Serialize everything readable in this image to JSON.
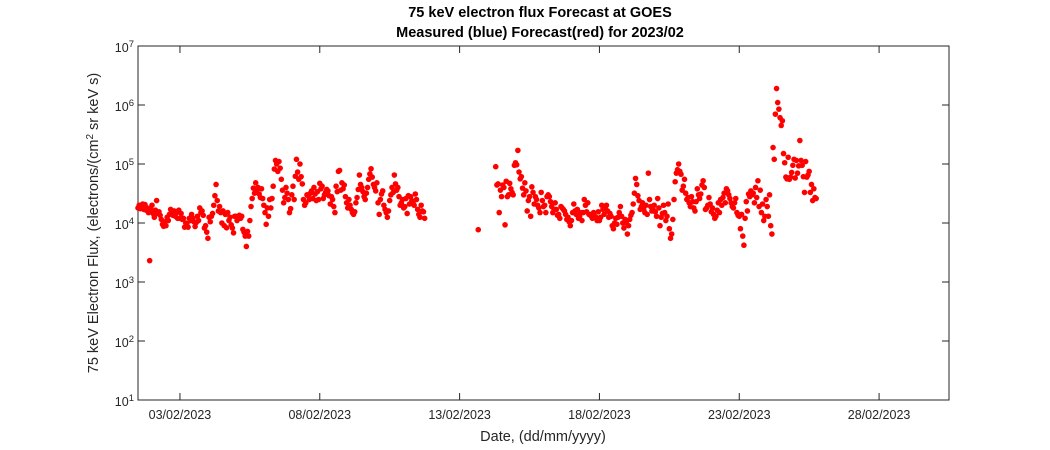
{
  "chart_data": {
    "type": "scatter",
    "title": "75 keV electron flux Forecast at GOES",
    "subtitle": "Measured (blue) Forecast(red) for 2023/02",
    "xlabel": "Date, (dd/mm/yyyy)",
    "ylabel": {
      "prefix": "75 keV Electron Flux, (electrons/(cm",
      "sup": "2",
      "suffix": " sr keV s)"
    },
    "y_scale": "log",
    "ylim": [
      10,
      10000000
    ],
    "y_ticks": [
      {
        "base": "10",
        "exp": "1"
      },
      {
        "base": "10",
        "exp": "2"
      },
      {
        "base": "10",
        "exp": "3"
      },
      {
        "base": "10",
        "exp": "4"
      },
      {
        "base": "10",
        "exp": "5"
      },
      {
        "base": "10",
        "exp": "6"
      },
      {
        "base": "10",
        "exp": "7"
      }
    ],
    "xlim": [
      "2023-02-01T12:00",
      "2023-03-02T12:00"
    ],
    "x_ticks": [
      "03/02/2023",
      "08/02/2023",
      "13/02/2023",
      "18/02/2023",
      "23/02/2023",
      "28/02/2023"
    ],
    "grid": false,
    "legend": "none",
    "series": [
      {
        "color": "#ff0000",
        "x_start": "2023-02-01T12:00",
        "step_hours": 1,
        "values": [
          18000,
          20000,
          17500,
          19000,
          21000,
          17000,
          20500,
          16500,
          18000,
          15000,
          2300,
          17000,
          20000,
          14500,
          12500,
          16500,
          24000,
          14500,
          15500,
          13500,
          11500,
          9500,
          8800,
          10500,
          9000,
          12500,
          11000,
          14000,
          17000,
          15500,
          13500,
          16000,
          13000,
          15000,
          12000,
          16500,
          12000,
          14500,
          11500,
          12000,
          8500,
          10000,
          9800,
          8500,
          12000,
          11000,
          14000,
          12000,
          10500,
          8700,
          10200,
          13000,
          11000,
          18000,
          15000,
          16000,
          13500,
          8200,
          9000,
          7000,
          5500,
          12500,
          10500,
          13000,
          14500,
          20000,
          29000,
          45000,
          24000,
          16000,
          19000,
          15000,
          10000,
          16000,
          9000,
          14000,
          8300,
          15000,
          11000,
          12500,
          9300,
          8200,
          6800,
          13000,
          13000,
          11000,
          12500,
          13500,
          12000,
          13000,
          7800,
          7000,
          6000,
          4000,
          7200,
          6000,
          11000,
          19000,
          26000,
          39000,
          32000,
          48000,
          36000,
          40000,
          31000,
          27000,
          38000,
          26000,
          20000,
          15000,
          9500,
          18000,
          13000,
          25000,
          18000,
          26000,
          42000,
          82000,
          115000,
          100000,
          75000,
          110000,
          85000,
          55000,
          36000,
          22000,
          27000,
          40000,
          32000,
          25000,
          15000,
          17500,
          30000,
          42000,
          25000,
          62000,
          120000,
          73000,
          55000,
          100000,
          61000,
          46000,
          25000,
          20000,
          22000,
          30000,
          29000,
          25000,
          32000,
          35000,
          26000,
          40000,
          31000,
          24000,
          34000,
          25000,
          47000,
          38000,
          42000,
          26000,
          30000,
          33000,
          37000,
          35000,
          29000,
          21000,
          28000,
          25000,
          19000,
          15000,
          42000,
          34000,
          75000,
          78000,
          36000,
          48000,
          38000,
          44000,
          28000,
          22000,
          18000,
          25000,
          20000,
          17000,
          15000,
          14000,
          15500,
          22000,
          27000,
          37000,
          65000,
          45000,
          40000,
          34000,
          28000,
          25000,
          32000,
          40000,
          55000,
          68000,
          83000,
          60000,
          45000,
          40000,
          35000,
          48000,
          22000,
          14000,
          25000,
          31000,
          35000,
          20000,
          17000,
          15000,
          12500,
          16000,
          24000,
          30000,
          40000,
          33000,
          65000,
          46000,
          36000,
          40000,
          28000,
          20000,
          22000,
          25000,
          18000,
          19000,
          26000,
          14500,
          29000,
          21000,
          28000,
          24000,
          22000,
          20000,
          31000,
          25000,
          17000,
          14000,
          12500,
          20000,
          16000,
          15500,
          12000,
          null,
          null,
          null,
          null,
          null,
          null,
          null,
          null,
          null,
          null,
          null,
          null,
          null,
          null,
          null,
          null,
          null,
          null,
          null,
          null,
          null,
          null,
          null,
          null,
          null,
          null,
          null,
          null,
          null,
          null,
          null,
          null,
          null,
          null,
          null,
          null,
          null,
          null,
          null,
          null,
          null,
          null,
          null,
          null,
          null,
          7700,
          null,
          null,
          null,
          null,
          null,
          null,
          null,
          null,
          null,
          null,
          null,
          null,
          null,
          null,
          90000,
          44000,
          46000,
          15000,
          36000,
          28000,
          44000,
          40000,
          9300,
          51000,
          28000,
          30000,
          47000,
          38000,
          33000,
          30000,
          95000,
          105000,
          97000,
          170000,
          73000,
          56000,
          61000,
          39000,
          30000,
          48000,
          35000,
          16000,
          24000,
          28000,
          13000,
          41000,
          33000,
          21000,
          28000,
          25000,
          20000,
          18000,
          15000,
          33000,
          24000,
          19000,
          20000,
          15000,
          28000,
          30000,
          28000,
          23000,
          19000,
          15000,
          17000,
          22000,
          17000,
          13500,
          14000,
          12000,
          19000,
          18000,
          17000,
          16000,
          14000,
          11500,
          12500,
          10500,
          9000,
          11000,
          15000,
          21000,
          16000,
          14000,
          17000,
          12000,
          13000,
          15000,
          11000,
          15000,
          25000,
          20000,
          15500,
          22000,
          14000,
          14000,
          13000,
          12000,
          15000,
          13000,
          12500,
          11000,
          15500,
          11000,
          12500,
          20000,
          17000,
          14000,
          18000,
          20000,
          16000,
          12500,
          14500,
          13000,
          9000,
          8000,
          10000,
          12000,
          9500,
          12500,
          15000,
          19000,
          13000,
          10000,
          8200,
          11500,
          10000,
          6500,
          9000,
          11500,
          13500,
          15000,
          21000,
          32000,
          57000,
          45000,
          29000,
          24000,
          17000,
          19000,
          22000,
          17000,
          15000,
          20000,
          14000,
          70000,
          25000,
          19000,
          16000,
          17000,
          20000,
          15500,
          13000,
          26000,
          18000,
          9000,
          12500,
          14500,
          20000,
          15000,
          11000,
          13000,
          21000,
          8000,
          5500,
          6500,
          11500,
          25000,
          50000,
          70000,
          80000,
          100000,
          75000,
          67000,
          36000,
          42000,
          55000,
          32000,
          25000,
          27000,
          22000,
          19000,
          28000,
          23000,
          18000,
          16000,
          23000,
          38000,
          30000,
          26000,
          31000,
          44000,
          52000,
          40000,
          17000,
          18000,
          20000,
          27000,
          21000,
          15500,
          18000,
          14000,
          12000,
          13000,
          16500,
          22000,
          15000,
          25000,
          20000,
          27000,
          32000,
          22000,
          38000,
          35000,
          30000,
          26000,
          22000,
          19000,
          18000,
          22000,
          26000,
          15000,
          13500,
          13000,
          8000,
          14000,
          6000,
          4200,
          12000,
          23000,
          16000,
          31000,
          28000,
          35000,
          30000,
          32000,
          22000,
          40000,
          27000,
          52000,
          19000,
          36000,
          15000,
          21000,
          11000,
          13000,
          25000,
          19000,
          13000,
          30000,
          9000,
          6500,
          190000,
          120000,
          700000,
          1900000,
          1100000,
          850000,
          610000,
          450000,
          540000,
          150000,
          105000,
          60000,
          56000,
          130000,
          55000,
          60000,
          72000,
          95000,
          120000,
          58000,
          115000,
          70000,
          93000,
          250000,
          115000,
          95000,
          61000,
          33000,
          110000,
          60000,
          65000,
          75000,
          33000,
          45000,
          24000,
          38000,
          27000,
          26000
        ]
      }
    ]
  }
}
